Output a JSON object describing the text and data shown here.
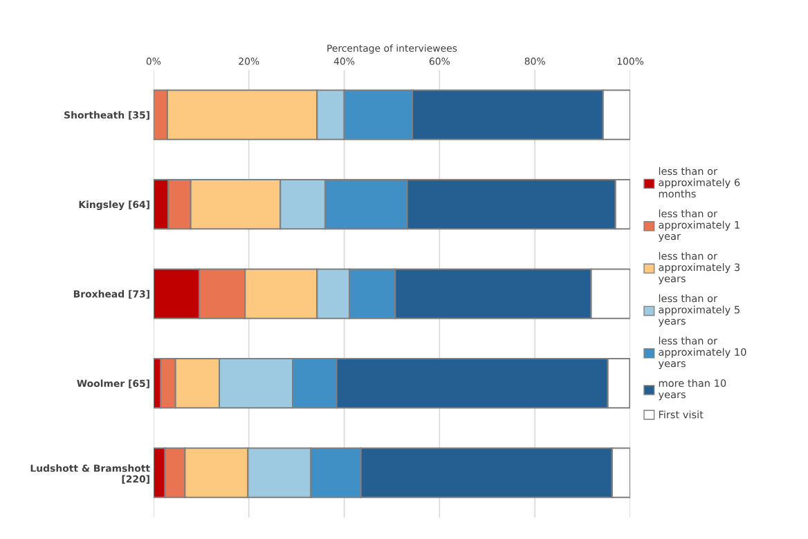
{
  "chart_data": {
    "type": "bar",
    "orientation": "horizontal",
    "stacked": true,
    "xlabel": "Percentage of interviewees",
    "categories": [
      "Shortheath [35]",
      "Kingsley [64]",
      "Broxhead [73]",
      "Woolmer [65]",
      "Ludshott & Bramshott [220]"
    ],
    "series": [
      {
        "name": "less than or approximately 6 months",
        "color": "#c00000",
        "values": [
          0,
          3.1,
          9.6,
          1.5,
          2.4
        ]
      },
      {
        "name": "less than or approximately 1 year",
        "color": "#e97451",
        "values": [
          2.9,
          4.7,
          9.6,
          3.1,
          4.2
        ]
      },
      {
        "name": "less than or approximately 3 years",
        "color": "#fdc981",
        "values": [
          31.4,
          18.8,
          15.1,
          9.2,
          13.2
        ]
      },
      {
        "name": "less than or approximately 5 years",
        "color": "#9ecae1",
        "values": [
          5.7,
          9.4,
          6.8,
          15.4,
          13.2
        ]
      },
      {
        "name": "less than or approximately 10 years",
        "color": "#4090c5",
        "values": [
          14.3,
          17.2,
          9.6,
          9.2,
          10.5
        ]
      },
      {
        "name": "more than 10 years",
        "color": "#255f91",
        "values": [
          40.0,
          43.7,
          41.1,
          56.9,
          52.7
        ]
      },
      {
        "name": "First visit",
        "color": "#ffffff",
        "values": [
          5.7,
          3.1,
          8.2,
          4.6,
          3.8
        ]
      }
    ],
    "xlim": [
      0,
      100
    ],
    "xticks": [
      {
        "value": 0,
        "label": "0%"
      },
      {
        "value": 20,
        "label": "20%"
      },
      {
        "value": 40,
        "label": "40%"
      },
      {
        "value": 60,
        "label": "60%"
      },
      {
        "value": 80,
        "label": "80%"
      },
      {
        "value": 100,
        "label": "100%"
      }
    ],
    "grid": "x",
    "legend": "right"
  }
}
